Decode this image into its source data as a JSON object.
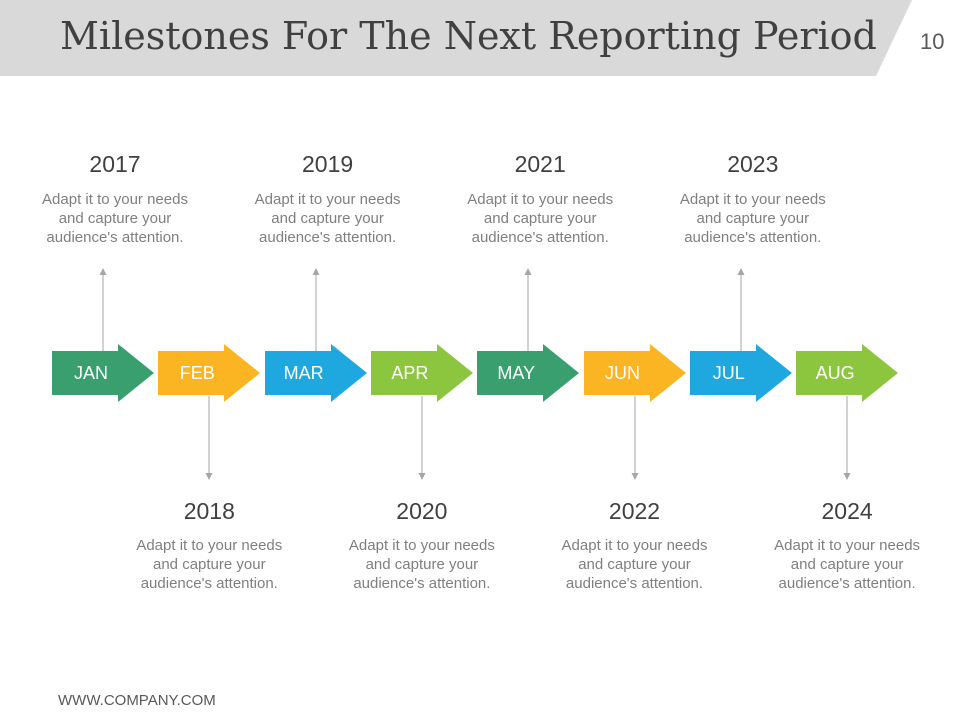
{
  "header": {
    "title": "Milestones For The Next Reporting Period",
    "page_number": "10"
  },
  "timeline": [
    {
      "month": "JAN",
      "year": "2017",
      "text": "Adapt it to your needs and capture your audience's attention.",
      "position": "top",
      "color": "#3a9f6e"
    },
    {
      "month": "FEB",
      "year": "2018",
      "text": "Adapt it to your needs and capture your audience's attention.",
      "position": "bottom",
      "color": "#fbb522"
    },
    {
      "month": "MAR",
      "year": "2019",
      "text": "Adapt it to your needs and capture your audience's attention.",
      "position": "top",
      "color": "#1fa8e0"
    },
    {
      "month": "APR",
      "year": "2020",
      "text": "Adapt it to your needs and capture your audience's attention.",
      "position": "bottom",
      "color": "#8cc63f"
    },
    {
      "month": "MAY",
      "year": "2021",
      "text": "Adapt it to your needs and capture your audience's attention.",
      "position": "top",
      "color": "#3a9f6e"
    },
    {
      "month": "JUN",
      "year": "2022",
      "text": "Adapt it to your needs and capture your audience's attention.",
      "position": "bottom",
      "color": "#fbb522"
    },
    {
      "month": "JUL",
      "year": "2023",
      "text": "Adapt it to your needs and capture your audience's attention.",
      "position": "top",
      "color": "#1fa8e0"
    },
    {
      "month": "AUG",
      "year": "2024",
      "text": "Adapt it to your needs and capture your audience's attention.",
      "position": "bottom",
      "color": "#8cc63f"
    }
  ],
  "connector_color": "#a6a6a6",
  "footer": {
    "url": "WWW.COMPANY.COM"
  }
}
